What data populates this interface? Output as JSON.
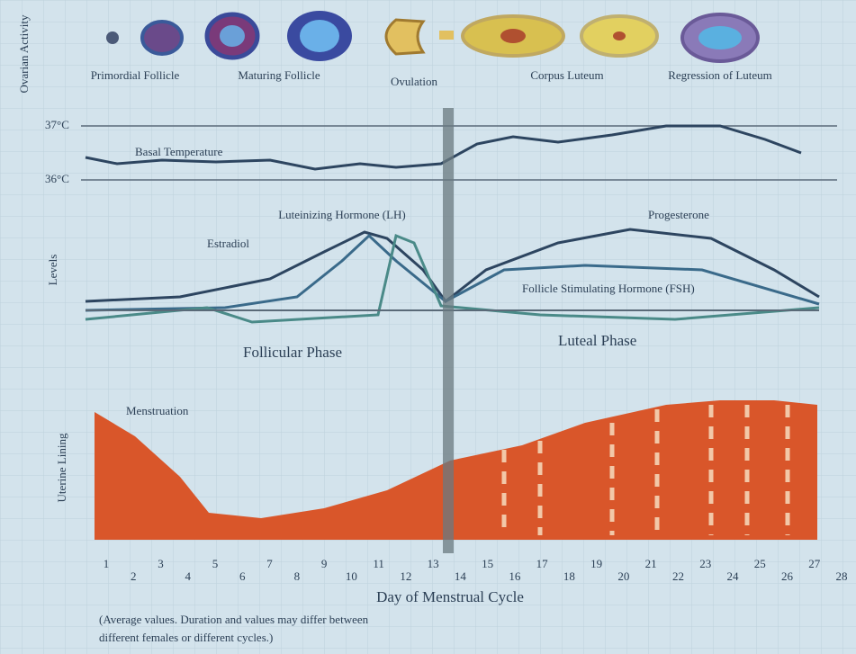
{
  "ovary": {
    "axis_label": "Ovarian Activity",
    "stages": [
      "Primordial Follicle",
      "Maturing Follicle",
      "Ovulation",
      "Corpus Luteum",
      "Regression of Luteum"
    ]
  },
  "temperature": {
    "high_label": "37°C",
    "low_label": "36°C",
    "title": "Basal Temperature"
  },
  "hormones": {
    "axis_label": "Levels",
    "lh": "Luteinizing Hormone (LH)",
    "estradiol": "Estradiol",
    "progesterone": "Progesterone",
    "fsh": "Follicle Stimulating Hormone (FSH)"
  },
  "phases": {
    "follicular": "Follicular Phase",
    "luteal": "Luteal Phase"
  },
  "uterus": {
    "axis_label": "Uterine Lining",
    "menstruation": "Menstruation"
  },
  "days": [
    1,
    2,
    3,
    4,
    5,
    6,
    7,
    8,
    9,
    10,
    11,
    12,
    13,
    14,
    15,
    16,
    17,
    18,
    19,
    20,
    21,
    22,
    23,
    24,
    25,
    26,
    27,
    28
  ],
  "x_label": "Day of Menstrual Cycle",
  "note_line1": "(Average values. Duration and values may differ between",
  "note_line2": "different females or different cycles.)"
}
